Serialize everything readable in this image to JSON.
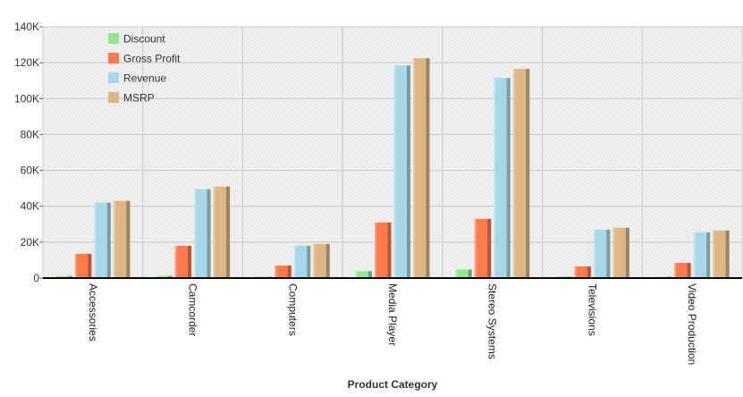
{
  "chart_data": {
    "type": "bar",
    "xlabel": "Product Category",
    "ylabel": "",
    "ylim": [
      0,
      140000
    ],
    "yticks": [
      0,
      20000,
      40000,
      60000,
      80000,
      100000,
      120000,
      140000
    ],
    "ytick_labels": [
      "0",
      "20K",
      "40K",
      "60K",
      "80K",
      "100K",
      "120K",
      "140K"
    ],
    "grid": true,
    "legend_position": "top-left",
    "categories": [
      "Accessories",
      "Camcorder",
      "Computers",
      "Media Player",
      "Stereo Systems",
      "Televisions",
      "Video Production"
    ],
    "series": [
      {
        "name": "Discount",
        "color": "#90e890",
        "values": [
          1200,
          1300,
          800,
          3800,
          4800,
          900,
          800
        ]
      },
      {
        "name": "Gross Profit",
        "color": "#ff7a4d",
        "values": [
          13500,
          18000,
          7000,
          31000,
          33000,
          6500,
          8500
        ]
      },
      {
        "name": "Revenue",
        "color": "#a8d8e8",
        "values": [
          42000,
          49500,
          18000,
          118500,
          111500,
          27000,
          25500
        ]
      },
      {
        "name": "MSRP",
        "color": "#dcb683",
        "values": [
          43000,
          51000,
          19000,
          122500,
          116500,
          28000,
          26500
        ]
      }
    ]
  }
}
